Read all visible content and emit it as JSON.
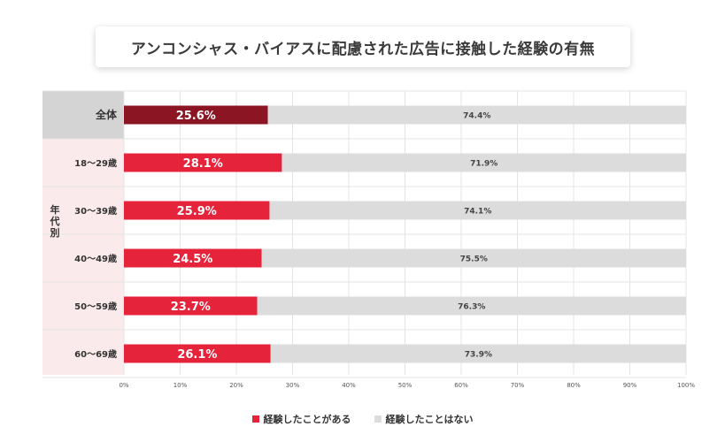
{
  "chart_data": {
    "type": "bar",
    "orientation": "horizontal",
    "stacked": true,
    "title": "アンコンシャス・バイアスに配慮された広告に接触した経験の有無",
    "group_label": "年代別",
    "categories": [
      "全体",
      "18～29歳",
      "30～39歳",
      "40～49歳",
      "50～59歳",
      "60～69歳"
    ],
    "series": [
      {
        "name": "経験したことがある",
        "values": [
          25.6,
          28.1,
          25.9,
          24.5,
          23.7,
          26.1
        ],
        "labels": [
          "25.6%",
          "28.1%",
          "25.9%",
          "24.5%",
          "23.7%",
          "26.1%"
        ]
      },
      {
        "name": "経験したことはない",
        "values": [
          74.4,
          71.9,
          74.1,
          75.5,
          76.3,
          73.9
        ],
        "labels": [
          "74.4%",
          "71.9%",
          "74.1%",
          "75.5%",
          "76.3%",
          "73.9%"
        ]
      }
    ],
    "xlim": [
      0,
      100
    ],
    "xticks": [
      0,
      10,
      20,
      30,
      40,
      50,
      60,
      70,
      80,
      90,
      100
    ],
    "xtick_labels": [
      "0%",
      "10%",
      "20%",
      "30%",
      "40%",
      "50%",
      "60%",
      "70%",
      "80%",
      "90%",
      "100%"
    ],
    "legend_position": "bottom-center",
    "grid": true
  },
  "colors": {
    "total_bar": "#8b1522",
    "age_bar": "#e5243b",
    "rest_bar": "#dcdcdc",
    "total_band": "#d4d4d4",
    "age_band": "#fbeaec",
    "grid": "#e4e4e4"
  }
}
